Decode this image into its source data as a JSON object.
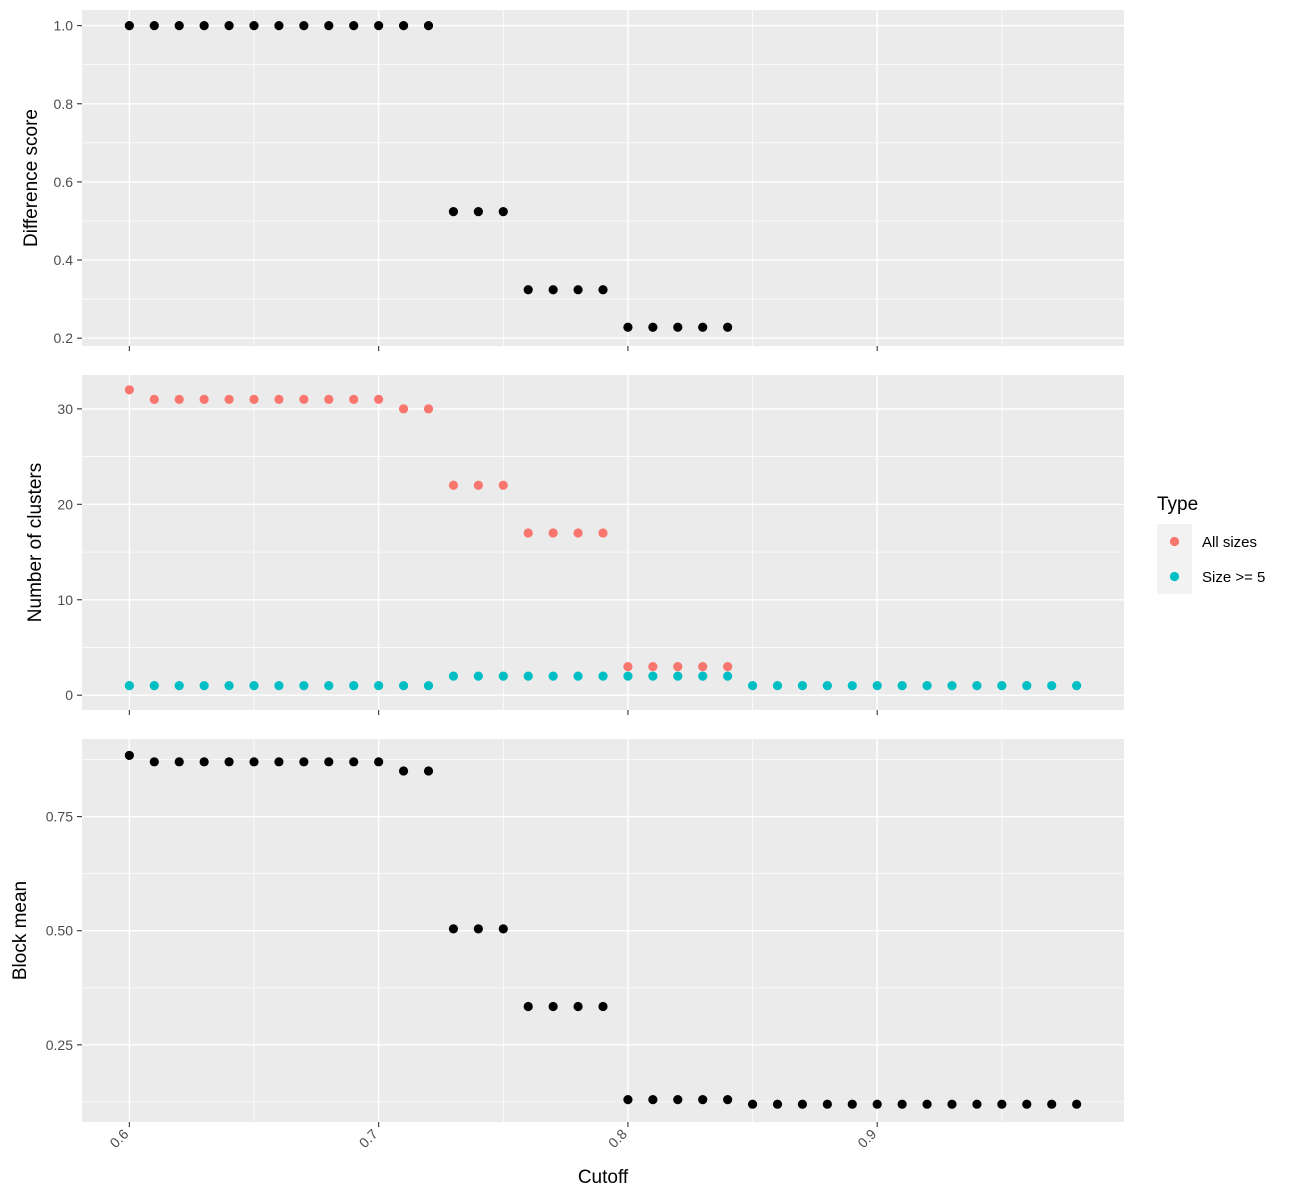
{
  "chart_data": {
    "type": "scatter",
    "facet_layout": "stacked vertically, shared x axis",
    "xlabel": "Cutoff",
    "x_tick_labels": [
      "0.6",
      "0.7",
      "0.8",
      "0.9"
    ],
    "x_ticks": [
      0.6,
      0.7,
      0.8,
      0.9
    ],
    "xlim": [
      0.581,
      0.999
    ],
    "x": [
      0.6,
      0.61,
      0.62,
      0.63,
      0.64,
      0.65,
      0.66,
      0.67,
      0.68,
      0.69,
      0.7,
      0.71,
      0.72,
      0.73,
      0.74,
      0.75,
      0.76,
      0.77,
      0.78,
      0.79,
      0.8,
      0.81,
      0.82,
      0.83,
      0.84,
      0.85,
      0.86,
      0.87,
      0.88,
      0.89,
      0.9,
      0.91,
      0.92,
      0.93,
      0.94,
      0.95,
      0.96,
      0.97,
      0.98
    ],
    "grid": true,
    "legend": {
      "title": "Type",
      "placement": "right",
      "entries": [
        {
          "label": "All sizes",
          "color": "#F8766D"
        },
        {
          "label": "Size >= 5",
          "color": "#00BFC4"
        }
      ]
    },
    "panels": [
      {
        "ylabel": "Difference score",
        "ylim": [
          0.18,
          1.04
        ],
        "y_ticks": [
          0.2,
          0.4,
          0.6,
          0.8,
          1.0
        ],
        "y_tick_labels": [
          "0.2",
          "0.4",
          "0.6",
          "0.8",
          "1.0"
        ],
        "series": [
          {
            "color": "#000000",
            "values": [
              1,
              1,
              1,
              1,
              1,
              1,
              1,
              1,
              1,
              1,
              1,
              1,
              1,
              0.524,
              0.524,
              0.524,
              0.324,
              0.324,
              0.324,
              0.324,
              0.228,
              0.228,
              0.228,
              0.228,
              0.228,
              null,
              null,
              null,
              null,
              null,
              null,
              null,
              null,
              null,
              null,
              null,
              null,
              null,
              null
            ]
          }
        ]
      },
      {
        "ylabel": "Number of clusters",
        "ylim": [
          -1.55,
          33.55
        ],
        "y_ticks": [
          0,
          10,
          20,
          30
        ],
        "y_tick_labels": [
          "0",
          "10",
          "20",
          "30"
        ],
        "series": [
          {
            "name": "All sizes",
            "color": "#F8766D",
            "values": [
              32,
              31,
              31,
              31,
              31,
              31,
              31,
              31,
              31,
              31,
              31,
              30,
              30,
              22,
              22,
              22,
              17,
              17,
              17,
              17,
              3,
              3,
              3,
              3,
              3,
              null,
              null,
              null,
              null,
              null,
              null,
              null,
              null,
              null,
              null,
              null,
              null,
              null,
              null
            ]
          },
          {
            "name": "Size >= 5",
            "color": "#00BFC4",
            "values": [
              1,
              1,
              1,
              1,
              1,
              1,
              1,
              1,
              1,
              1,
              1,
              1,
              1,
              2,
              2,
              2,
              2,
              2,
              2,
              2,
              2,
              2,
              2,
              2,
              2,
              1,
              1,
              1,
              1,
              1,
              1,
              1,
              1,
              1,
              1,
              1,
              1,
              1,
              1
            ]
          }
        ]
      },
      {
        "ylabel": "Block mean",
        "ylim": [
          0.081,
          0.92
        ],
        "y_ticks": [
          0.25,
          0.5,
          0.75
        ],
        "y_tick_labels": [
          "0.25",
          "0.50",
          "0.75"
        ],
        "series": [
          {
            "color": "#000000",
            "values": [
              0.884,
              0.87,
              0.87,
              0.87,
              0.87,
              0.87,
              0.87,
              0.87,
              0.87,
              0.87,
              0.87,
              0.85,
              0.85,
              0.504,
              0.504,
              0.504,
              0.334,
              0.334,
              0.334,
              0.334,
              0.13,
              0.13,
              0.13,
              0.13,
              0.13,
              0.12,
              0.12,
              0.12,
              0.12,
              0.12,
              0.12,
              0.12,
              0.12,
              0.12,
              0.12,
              0.12,
              0.12,
              0.12,
              0.12
            ]
          }
        ]
      }
    ]
  }
}
